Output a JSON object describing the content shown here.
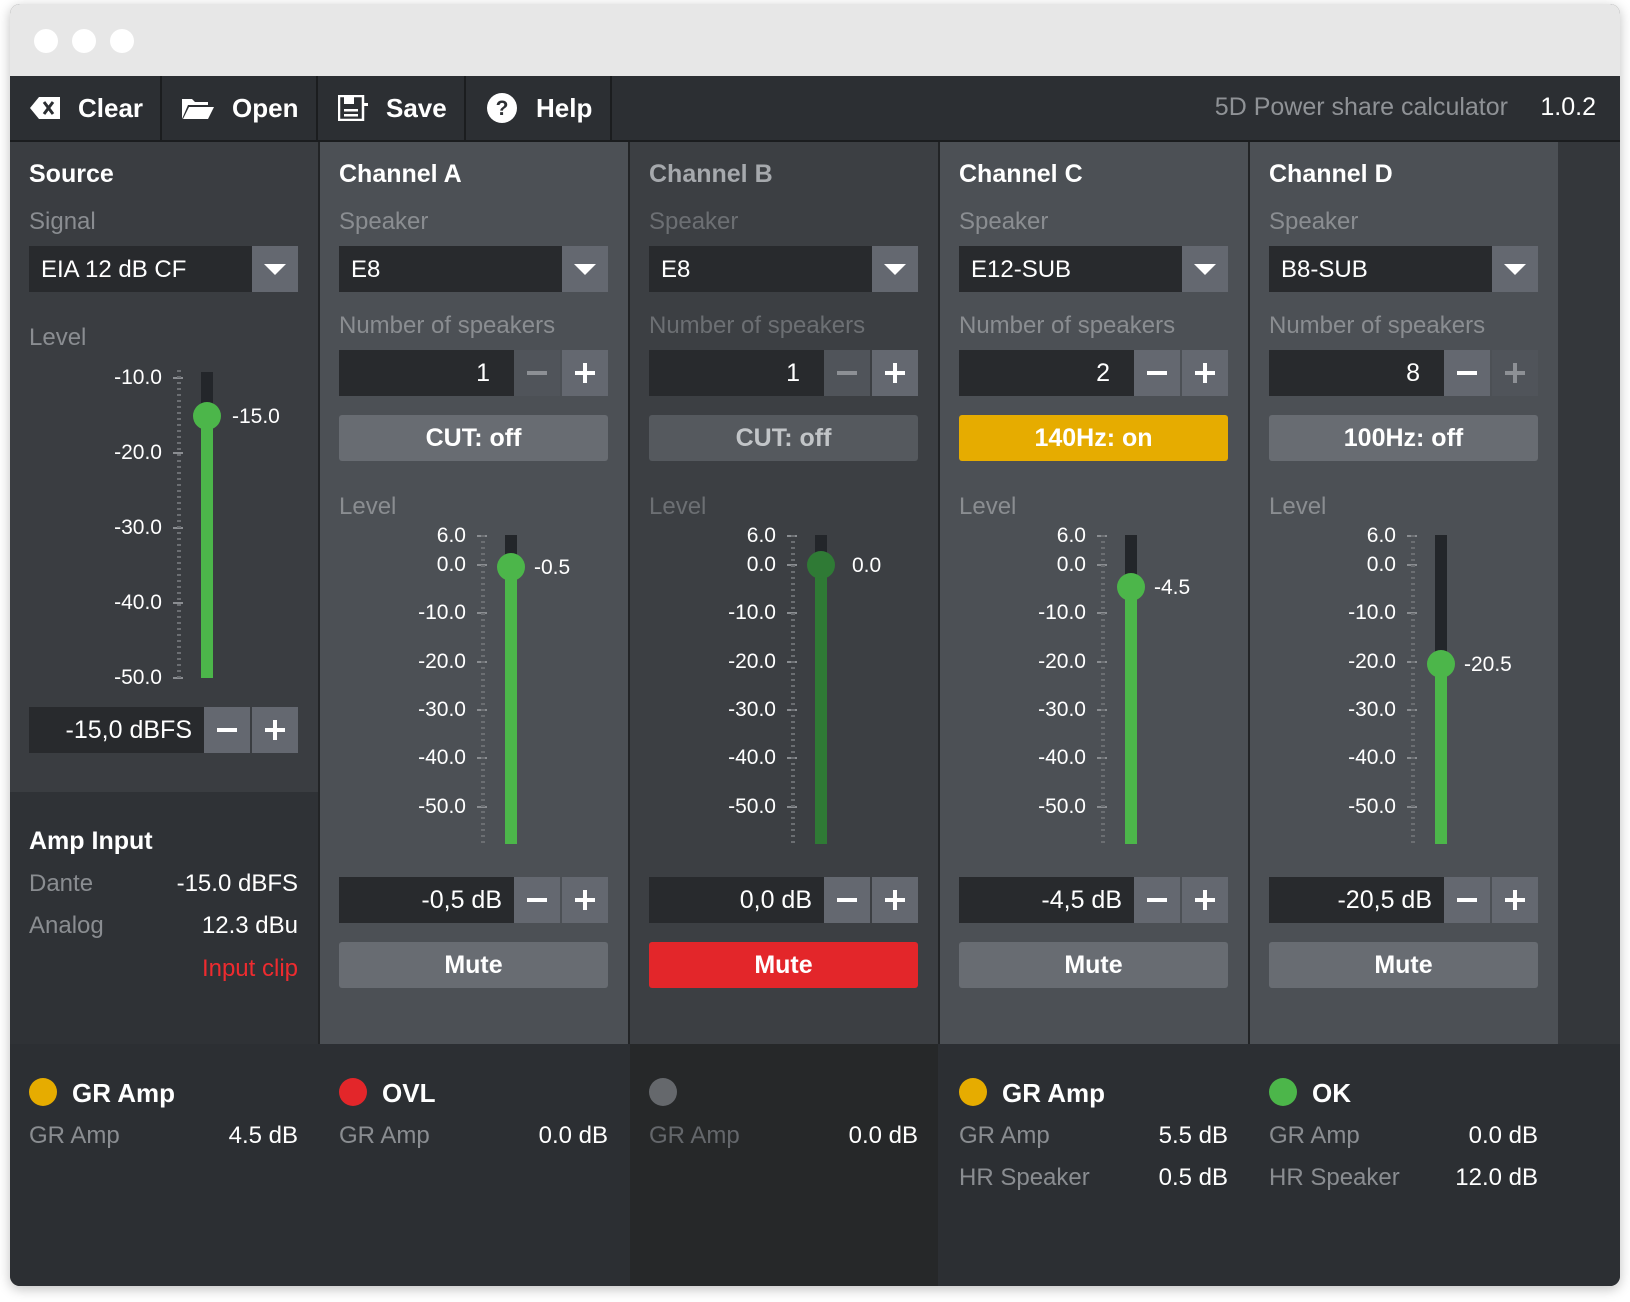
{
  "toolbar": {
    "clear_label": "Clear",
    "open_label": "Open",
    "save_label": "Save",
    "help_label": "Help",
    "app_name": "5D Power share calculator",
    "version": "1.0.2"
  },
  "source": {
    "title": "Source",
    "signal_label": "Signal",
    "signal_value": "EIA 12 dB CF",
    "level_label": "Level",
    "scale": [
      "-10.0",
      "-20.0",
      "-30.0",
      "-40.0",
      "-50.0"
    ],
    "fader_value": "-15.0",
    "level_field": "-15,0  dBFS"
  },
  "amp_input": {
    "title": "Amp Input",
    "dante_label": "Dante",
    "dante_value": "-15.0 dBFS",
    "analog_label": "Analog",
    "analog_value": "12.3 dBu",
    "warning": "Input clip"
  },
  "common": {
    "speaker_label": "Speaker",
    "count_label": "Number of speakers",
    "level_label": "Level",
    "scale": [
      "6.0",
      "0.0",
      "-10.0",
      "-20.0",
      "-30.0",
      "-40.0",
      "-50.0"
    ],
    "mute_label": "Mute",
    "gr_amp_label": "GR Amp",
    "hr_speaker_label": "HR Speaker"
  },
  "channels": [
    {
      "title": "Channel A",
      "speaker": "E8",
      "count": "1",
      "filter_label": "CUT: off",
      "fader_value": "-0.5",
      "level_field": "-0,5  dB",
      "status_title": "OVL",
      "status_color": "#e3262a",
      "gr_amp": "0.0 dB"
    },
    {
      "title": "Channel B",
      "speaker": "E8",
      "count": "1",
      "filter_label": "CUT: off",
      "fader_value": "0.0",
      "level_field": "0,0  dB",
      "status_title": "",
      "status_color": "#65686c",
      "gr_amp": "0.0 dB"
    },
    {
      "title": "Channel C",
      "speaker": "E12-SUB",
      "count": "2",
      "filter_label": "140Hz: on",
      "fader_value": "-4.5",
      "level_field": "-4,5  dB",
      "status_title": "GR Amp",
      "status_color": "#e6ac00",
      "gr_amp": "5.5 dB",
      "hr_speaker": "0.5 dB"
    },
    {
      "title": "Channel D",
      "speaker": "B8-SUB",
      "count": "8",
      "filter_label": "100Hz: off",
      "fader_value": "-20.5",
      "level_field": "-20,5  dB",
      "status_title": "OK",
      "status_color": "#4cb64a",
      "gr_amp": "0.0 dB",
      "hr_speaker": "12.0 dB"
    }
  ],
  "source_status": {
    "title": "GR Amp",
    "color": "#e6ac00",
    "gr_amp": "4.5 dB"
  }
}
